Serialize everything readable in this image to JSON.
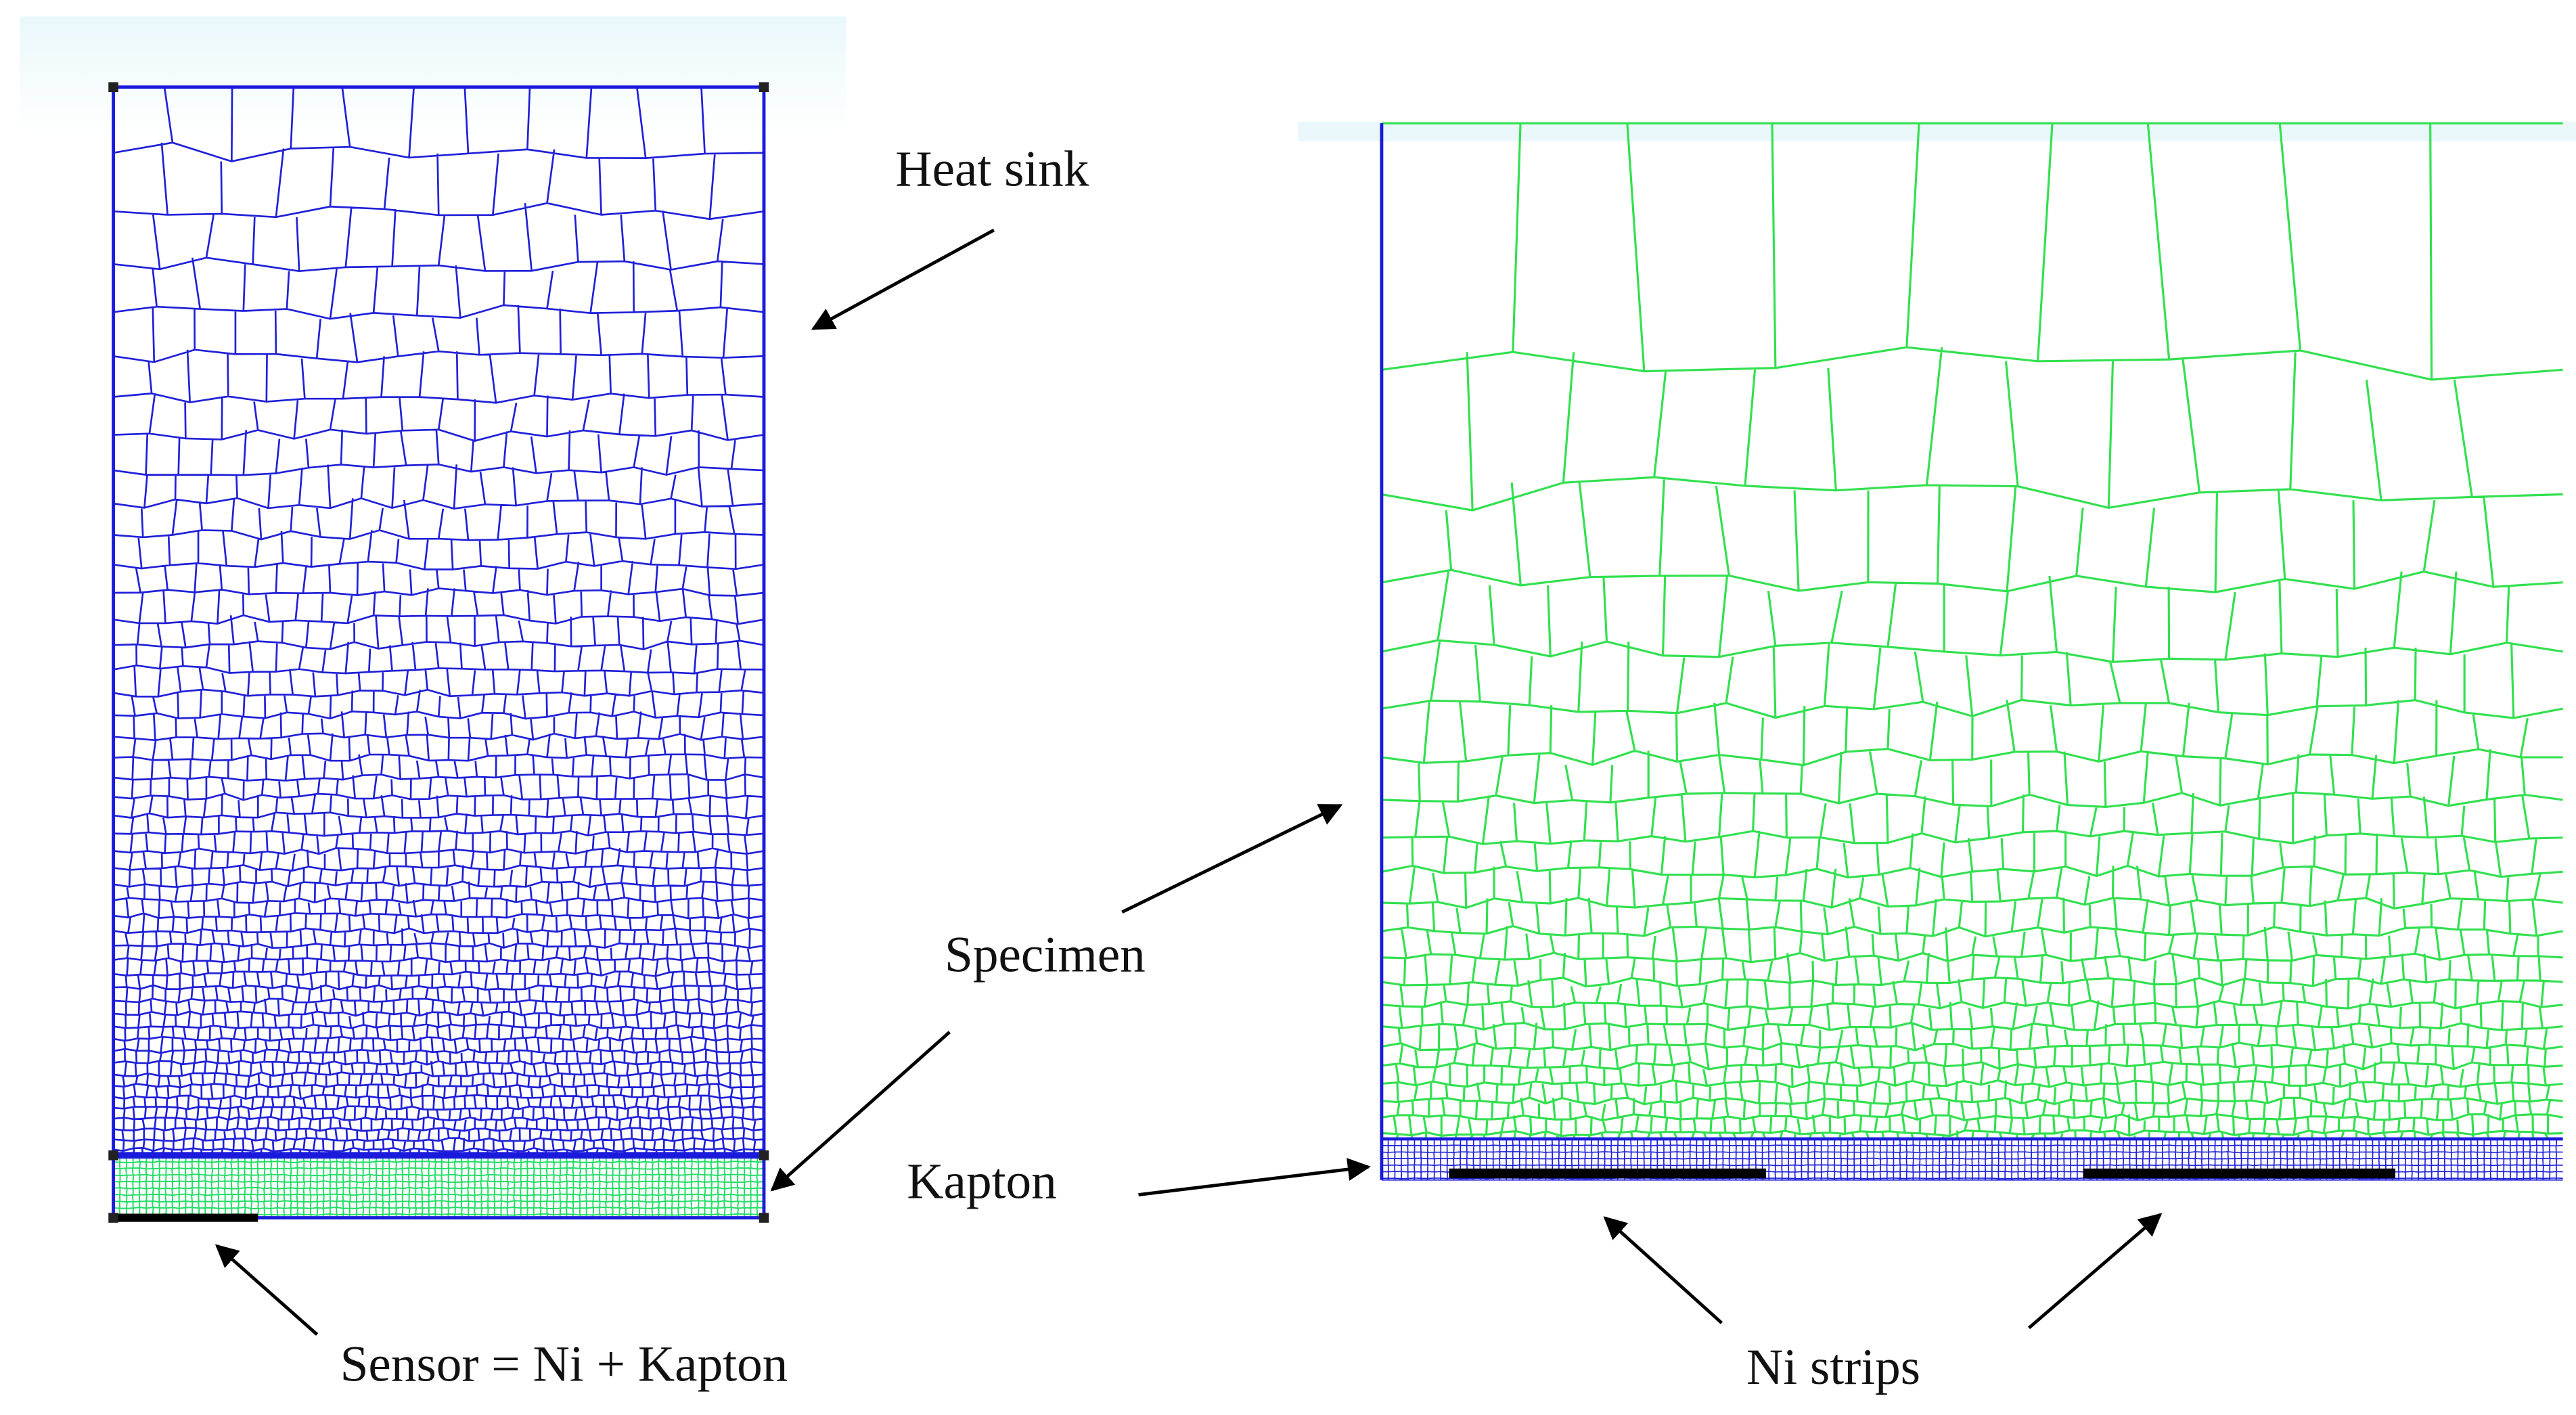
{
  "labels": {
    "heat_sink": "Heat sink",
    "specimen": "Specimen",
    "kapton": "Kapton",
    "sensor": "Sensor = Ni + Kapton",
    "ni_strips": "Ni strips"
  }
}
